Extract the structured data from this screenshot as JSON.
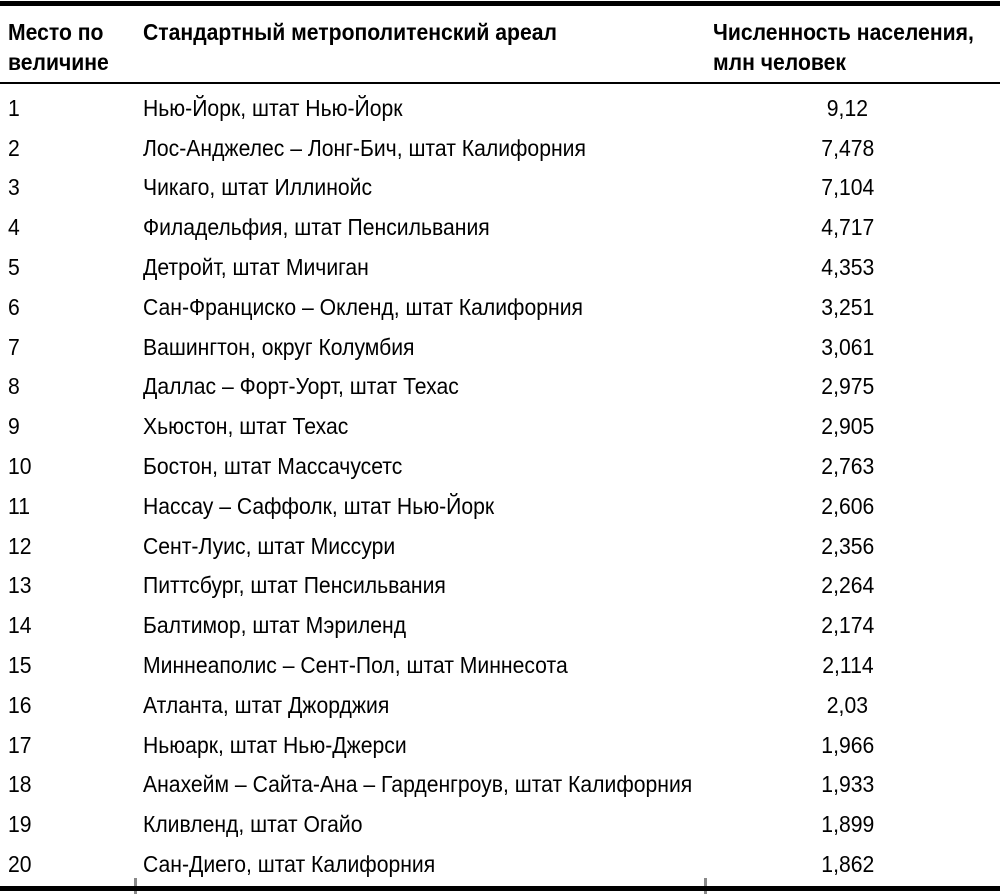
{
  "page": {
    "background": "#ffffff",
    "text_color": "#000000",
    "rule_color": "#000000",
    "tick_color": "#8a8a8a"
  },
  "table": {
    "columns": [
      {
        "id": "rank",
        "label": "Место по величине"
      },
      {
        "id": "area",
        "label": "Стандартный метрополитенский ареал"
      },
      {
        "id": "population",
        "label": "Численность населения, млн человек"
      }
    ],
    "rows": [
      {
        "rank": "1",
        "area": "Нью-Йорк, штат Нью-Йорк",
        "population": "9,12"
      },
      {
        "rank": "2",
        "area": "Лос-Анджелес – Лонг-Бич, штат Калифорния",
        "population": "7,478"
      },
      {
        "rank": "3",
        "area": "Чикаго, штат Иллинойс",
        "population": "7,104"
      },
      {
        "rank": "4",
        "area": "Филадельфия, штат Пенсильвания",
        "population": "4,717"
      },
      {
        "rank": "5",
        "area": "Детройт, штат Мичиган",
        "population": "4,353"
      },
      {
        "rank": "6",
        "area": "Сан-Франциско – Окленд, штат Калифорния",
        "population": "3,251"
      },
      {
        "rank": "7",
        "area": "Вашингтон, округ Колумбия",
        "population": "3,061"
      },
      {
        "rank": "8",
        "area": "Даллас – Форт-Уорт, штат Техас",
        "population": "2,975"
      },
      {
        "rank": "9",
        "area": "Хьюстон, штат Техас",
        "population": "2,905"
      },
      {
        "rank": "10",
        "area": "Бостон, штат Массачусетс",
        "population": "2,763"
      },
      {
        "rank": "11",
        "area": "Нассау – Саффолк, штат Нью-Йорк",
        "population": "2,606"
      },
      {
        "rank": "12",
        "area": "Сент-Луис, штат Миссури",
        "population": "2,356"
      },
      {
        "rank": "13",
        "area": "Питтсбург, штат Пенсильвания",
        "population": "2,264"
      },
      {
        "rank": "14",
        "area": "Балтимор, штат Мэриленд",
        "population": "2,174"
      },
      {
        "rank": "15",
        "area": "Миннеаполис – Сент-Пол, штат Миннесота",
        "population": "2,114"
      },
      {
        "rank": "16",
        "area": "Атланта, штат Джорджия",
        "population": "2,03"
      },
      {
        "rank": "17",
        "area": "Ньюарк, штат Нью-Джерси",
        "population": "1,966"
      },
      {
        "rank": "18",
        "area": "Анахейм – Сайта-Ана – Гарденгроув, штат Калифорния",
        "population": "1,933"
      },
      {
        "rank": "19",
        "area": "Кливленд, штат Огайо",
        "population": "1,899"
      },
      {
        "rank": "20",
        "area": "Сан-Диего, штат Калифорния",
        "population": "1,862"
      }
    ]
  }
}
